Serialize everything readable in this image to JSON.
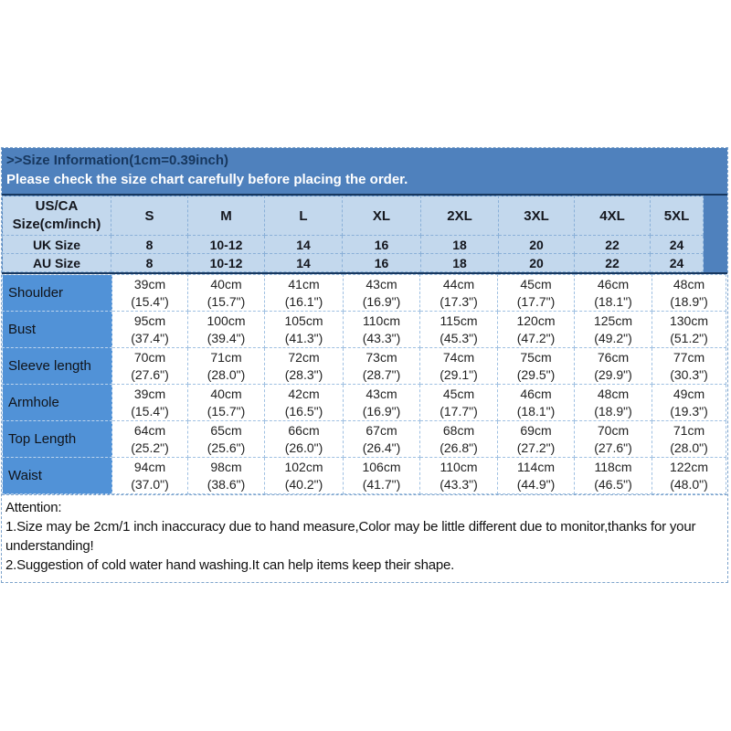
{
  "banner": {
    "title": ">>Size Information(1cm=0.39inch)",
    "subtitle": "Please check the size chart carefully before placing the order."
  },
  "table": {
    "corner": [
      "US/CA",
      "Size(cm/inch)"
    ],
    "sizes": [
      "S",
      "M",
      "L",
      "XL",
      "2XL",
      "3XL",
      "4XL",
      "5XL"
    ],
    "uk": {
      "label": "UK Size",
      "values": [
        "8",
        "10-12",
        "14",
        "16",
        "18",
        "20",
        "22",
        "24"
      ]
    },
    "au": {
      "label": "AU Size",
      "values": [
        "8",
        "10-12",
        "14",
        "16",
        "18",
        "20",
        "22",
        "24"
      ]
    },
    "measurements": [
      {
        "label": "Shoulder",
        "cells": [
          [
            "39cm",
            "(15.4\")"
          ],
          [
            "40cm",
            "(15.7\")"
          ],
          [
            "41cm",
            "(16.1\")"
          ],
          [
            "43cm",
            "(16.9\")"
          ],
          [
            "44cm",
            "(17.3\")"
          ],
          [
            "45cm",
            "(17.7\")"
          ],
          [
            "46cm",
            "(18.1\")"
          ],
          [
            "48cm",
            "(18.9\")"
          ]
        ]
      },
      {
        "label": "Bust",
        "cells": [
          [
            "95cm",
            "(37.4\")"
          ],
          [
            "100cm",
            "(39.4\")"
          ],
          [
            "105cm",
            "(41.3\")"
          ],
          [
            "110cm",
            "(43.3\")"
          ],
          [
            "115cm",
            "(45.3\")"
          ],
          [
            "120cm",
            "(47.2\")"
          ],
          [
            "125cm",
            "(49.2\")"
          ],
          [
            "130cm",
            "(51.2\")"
          ]
        ]
      },
      {
        "label": "Sleeve length",
        "cells": [
          [
            "70cm",
            "(27.6\")"
          ],
          [
            "71cm",
            "(28.0\")"
          ],
          [
            "72cm",
            "(28.3\")"
          ],
          [
            "73cm",
            "(28.7\")"
          ],
          [
            "74cm",
            "(29.1\")"
          ],
          [
            "75cm",
            "(29.5\")"
          ],
          [
            "76cm",
            "(29.9\")"
          ],
          [
            "77cm",
            "(30.3\")"
          ]
        ]
      },
      {
        "label": "Armhole",
        "cells": [
          [
            "39cm",
            "(15.4\")"
          ],
          [
            "40cm",
            "(15.7\")"
          ],
          [
            "42cm",
            "(16.5\")"
          ],
          [
            "43cm",
            "(16.9\")"
          ],
          [
            "45cm",
            "(17.7\")"
          ],
          [
            "46cm",
            "(18.1\")"
          ],
          [
            "48cm",
            "(18.9\")"
          ],
          [
            "49cm",
            "(19.3\")"
          ]
        ]
      },
      {
        "label": "Top Length",
        "cells": [
          [
            "64cm",
            "(25.2\")"
          ],
          [
            "65cm",
            "(25.6\")"
          ],
          [
            "66cm",
            "(26.0\")"
          ],
          [
            "67cm",
            "(26.4\")"
          ],
          [
            "68cm",
            "(26.8\")"
          ],
          [
            "69cm",
            "(27.2\")"
          ],
          [
            "70cm",
            "(27.6\")"
          ],
          [
            "71cm",
            "(28.0\")"
          ]
        ]
      },
      {
        "label": "Waist",
        "cells": [
          [
            "94cm",
            "(37.0\")"
          ],
          [
            "98cm",
            "(38.6\")"
          ],
          [
            "102cm",
            "(40.2\")"
          ],
          [
            "106cm",
            "(41.7\")"
          ],
          [
            "110cm",
            "(43.3\")"
          ],
          [
            "114cm",
            "(44.9\")"
          ],
          [
            "118cm",
            "(46.5\")"
          ],
          [
            "122cm",
            "(48.0\")"
          ]
        ]
      }
    ]
  },
  "attention": {
    "title": "Attention:",
    "lines": [
      "1.Size may be 2cm/1 inch inaccuracy due to hand measure,Color may be little different due to monitor,thanks for your understanding!",
      "2.Suggestion of cold water hand washing.It can help items keep their shape."
    ]
  },
  "colors": {
    "banner_bg": "#4f81bd",
    "banner_title_text": "#17375e",
    "banner_subtitle_text": "#ffffff",
    "header_row_bg": "#c3d8ed",
    "row_label_bg": "#5192d7",
    "divider_line": "#17375e",
    "dotted_border": "#8ab0d8"
  }
}
